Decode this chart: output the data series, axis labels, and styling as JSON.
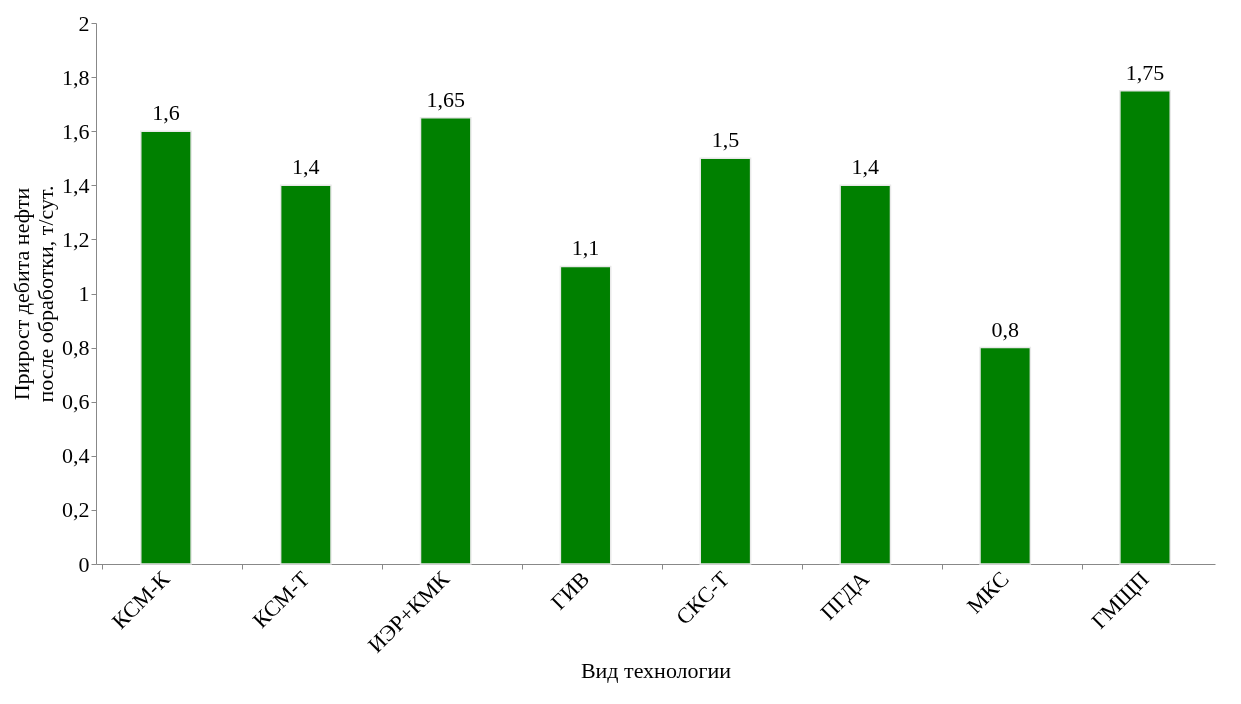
{
  "chart_data": {
    "type": "bar",
    "xlabel": "Вид технологии",
    "ylabel": "Прирост дебита нефти\nпосле обработки, т/сут.",
    "categories": [
      "КСМ-К",
      "КСМ-Т",
      "ИЭР+КМК",
      "ГИВ",
      "СКС-Т",
      "ПГДА",
      "МКС",
      "ГМЩП"
    ],
    "values": [
      1.6,
      1.4,
      1.65,
      1.1,
      1.5,
      1.4,
      0.8,
      1.75
    ],
    "value_labels": [
      "1,6",
      "1,4",
      "1,65",
      "1,1",
      "1,5",
      "1,4",
      "0,8",
      "1,75"
    ],
    "color": "#008000",
    "ylim": [
      0,
      2
    ],
    "yticks": [
      0,
      {
        "value": 0.2,
        "label": "0,2"
      },
      {
        "value": 0.4,
        "label": "0,4"
      },
      {
        "value": 0.6,
        "label": "0,6"
      },
      {
        "value": 0.8,
        "label": "0,8"
      },
      1,
      {
        "value": 1.2,
        "label": "1,2"
      },
      {
        "value": 1.4,
        "label": "1,4"
      },
      {
        "value": 1.6,
        "label": "1,6"
      },
      {
        "value": 1.8,
        "label": "1,8"
      },
      2
    ],
    "grid": false
  }
}
